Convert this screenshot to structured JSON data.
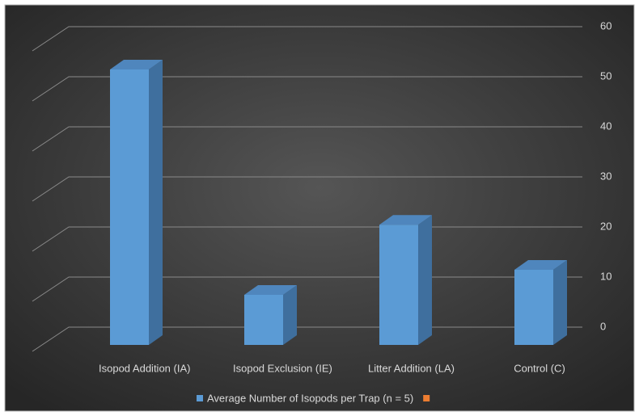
{
  "chart_data": {
    "type": "bar3d",
    "categories": [
      "Isopod Addition (IA)",
      "Isopod Exclusion (IE)",
      "Litter Addition (LA)",
      "Control (C)"
    ],
    "series": [
      {
        "name": "Average Number of Isopods per Trap (n = 5)",
        "color": "#5b9bd5",
        "values": [
          55,
          10,
          24,
          15
        ]
      },
      {
        "name": null,
        "color": "#ed7d31",
        "values": [
          null,
          null,
          null,
          null
        ]
      }
    ],
    "ylim": [
      0,
      60
    ],
    "yticks": [
      0,
      10,
      20,
      30,
      40,
      50,
      60
    ],
    "grid": true
  }
}
